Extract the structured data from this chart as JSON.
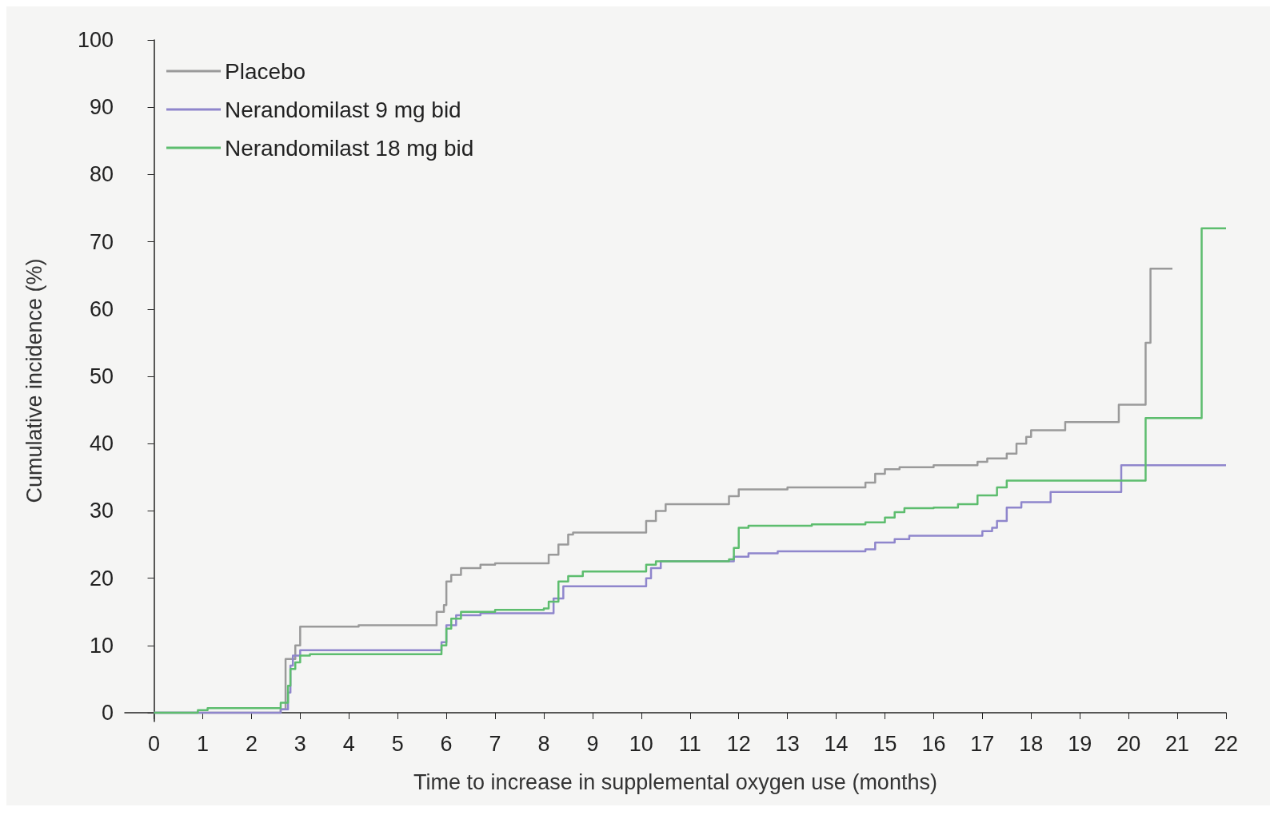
{
  "chart_data": {
    "type": "step",
    "xlabel": "Time to increase in supplemental oxygen use (months)",
    "ylabel": "Cumulative incidence (%)",
    "xlim": [
      -0.6,
      22
    ],
    "xticks": [
      0,
      1,
      2,
      3,
      4,
      5,
      6,
      7,
      8,
      9,
      10,
      11,
      12,
      13,
      14,
      15,
      16,
      17,
      18,
      19,
      20,
      21,
      22
    ],
    "ylim": [
      -1.3,
      100
    ],
    "yticks": [
      0,
      10,
      20,
      30,
      40,
      50,
      60,
      70,
      80,
      90,
      100
    ],
    "grid": false,
    "legend": "top left",
    "marker": "none",
    "line_style": "solid",
    "series": [
      {
        "name": "Placebo",
        "color": "#9a9a9a",
        "x": [
          0,
          2.6,
          2.7,
          2.9,
          3.0,
          4.2,
          5.8,
          5.95,
          6.0,
          6.1,
          6.3,
          6.7,
          7.0,
          8.1,
          8.3,
          8.5,
          8.6,
          10.1,
          10.3,
          10.5,
          11.8,
          12.0,
          13.0,
          14.6,
          14.8,
          15.0,
          15.3,
          16.0,
          16.9,
          17.1,
          17.5,
          17.7,
          17.9,
          18.0,
          18.7,
          19.8,
          20.35,
          20.45,
          20.9
        ],
        "values": [
          0,
          0.5,
          8,
          10,
          12.8,
          13,
          15,
          16,
          19.5,
          20.5,
          21.5,
          22,
          22.2,
          23.5,
          25,
          26.5,
          26.8,
          28.5,
          30,
          31,
          32.2,
          33.2,
          33.5,
          34.2,
          35.5,
          36.2,
          36.5,
          36.8,
          37.3,
          37.8,
          38.5,
          40,
          41,
          42,
          43.2,
          45.8,
          55,
          66,
          66
        ]
      },
      {
        "name": "Nerandomilast 9 mg bid",
        "color": "#8f86cc",
        "x": [
          0,
          2.6,
          2.75,
          2.8,
          2.85,
          3.0,
          5.9,
          6.0,
          6.2,
          6.7,
          8.2,
          8.4,
          10.1,
          10.2,
          10.4,
          11.9,
          12.2,
          12.8,
          14.6,
          14.8,
          15.2,
          15.5,
          17.0,
          17.2,
          17.3,
          17.5,
          17.8,
          18.4,
          19.85,
          22
        ],
        "values": [
          0,
          0.5,
          3,
          7,
          8.5,
          9.3,
          10.5,
          13,
          14.5,
          14.8,
          17,
          18.8,
          20,
          21.5,
          22.5,
          23.2,
          23.7,
          24,
          24.3,
          25.3,
          25.8,
          26.3,
          27,
          27.5,
          28.5,
          30.5,
          31.3,
          32.8,
          36.8,
          36.8
        ]
      },
      {
        "name": "Nerandomilast 18 mg bid",
        "color": "#5dbd6e",
        "x": [
          0,
          0.9,
          1.1,
          2.6,
          2.75,
          2.8,
          2.9,
          3.0,
          3.2,
          5.9,
          6.0,
          6.1,
          6.3,
          7.0,
          8.0,
          8.1,
          8.3,
          8.5,
          8.8,
          10.1,
          10.3,
          11.8,
          11.9,
          12.0,
          12.2,
          13.5,
          14.6,
          15.0,
          15.2,
          15.4,
          16.0,
          16.5,
          16.9,
          17.3,
          17.5,
          20.35,
          21.5,
          22
        ],
        "values": [
          0,
          0.4,
          0.7,
          1.5,
          4,
          6.5,
          7.5,
          8.5,
          8.7,
          10,
          12.5,
          14,
          15,
          15.3,
          15.5,
          16.5,
          19.5,
          20.3,
          21,
          22,
          22.5,
          22.8,
          24.5,
          27.5,
          27.8,
          28,
          28.3,
          29,
          29.8,
          30.4,
          30.5,
          31,
          32.3,
          33.5,
          34.5,
          43.8,
          72,
          72
        ]
      }
    ]
  }
}
